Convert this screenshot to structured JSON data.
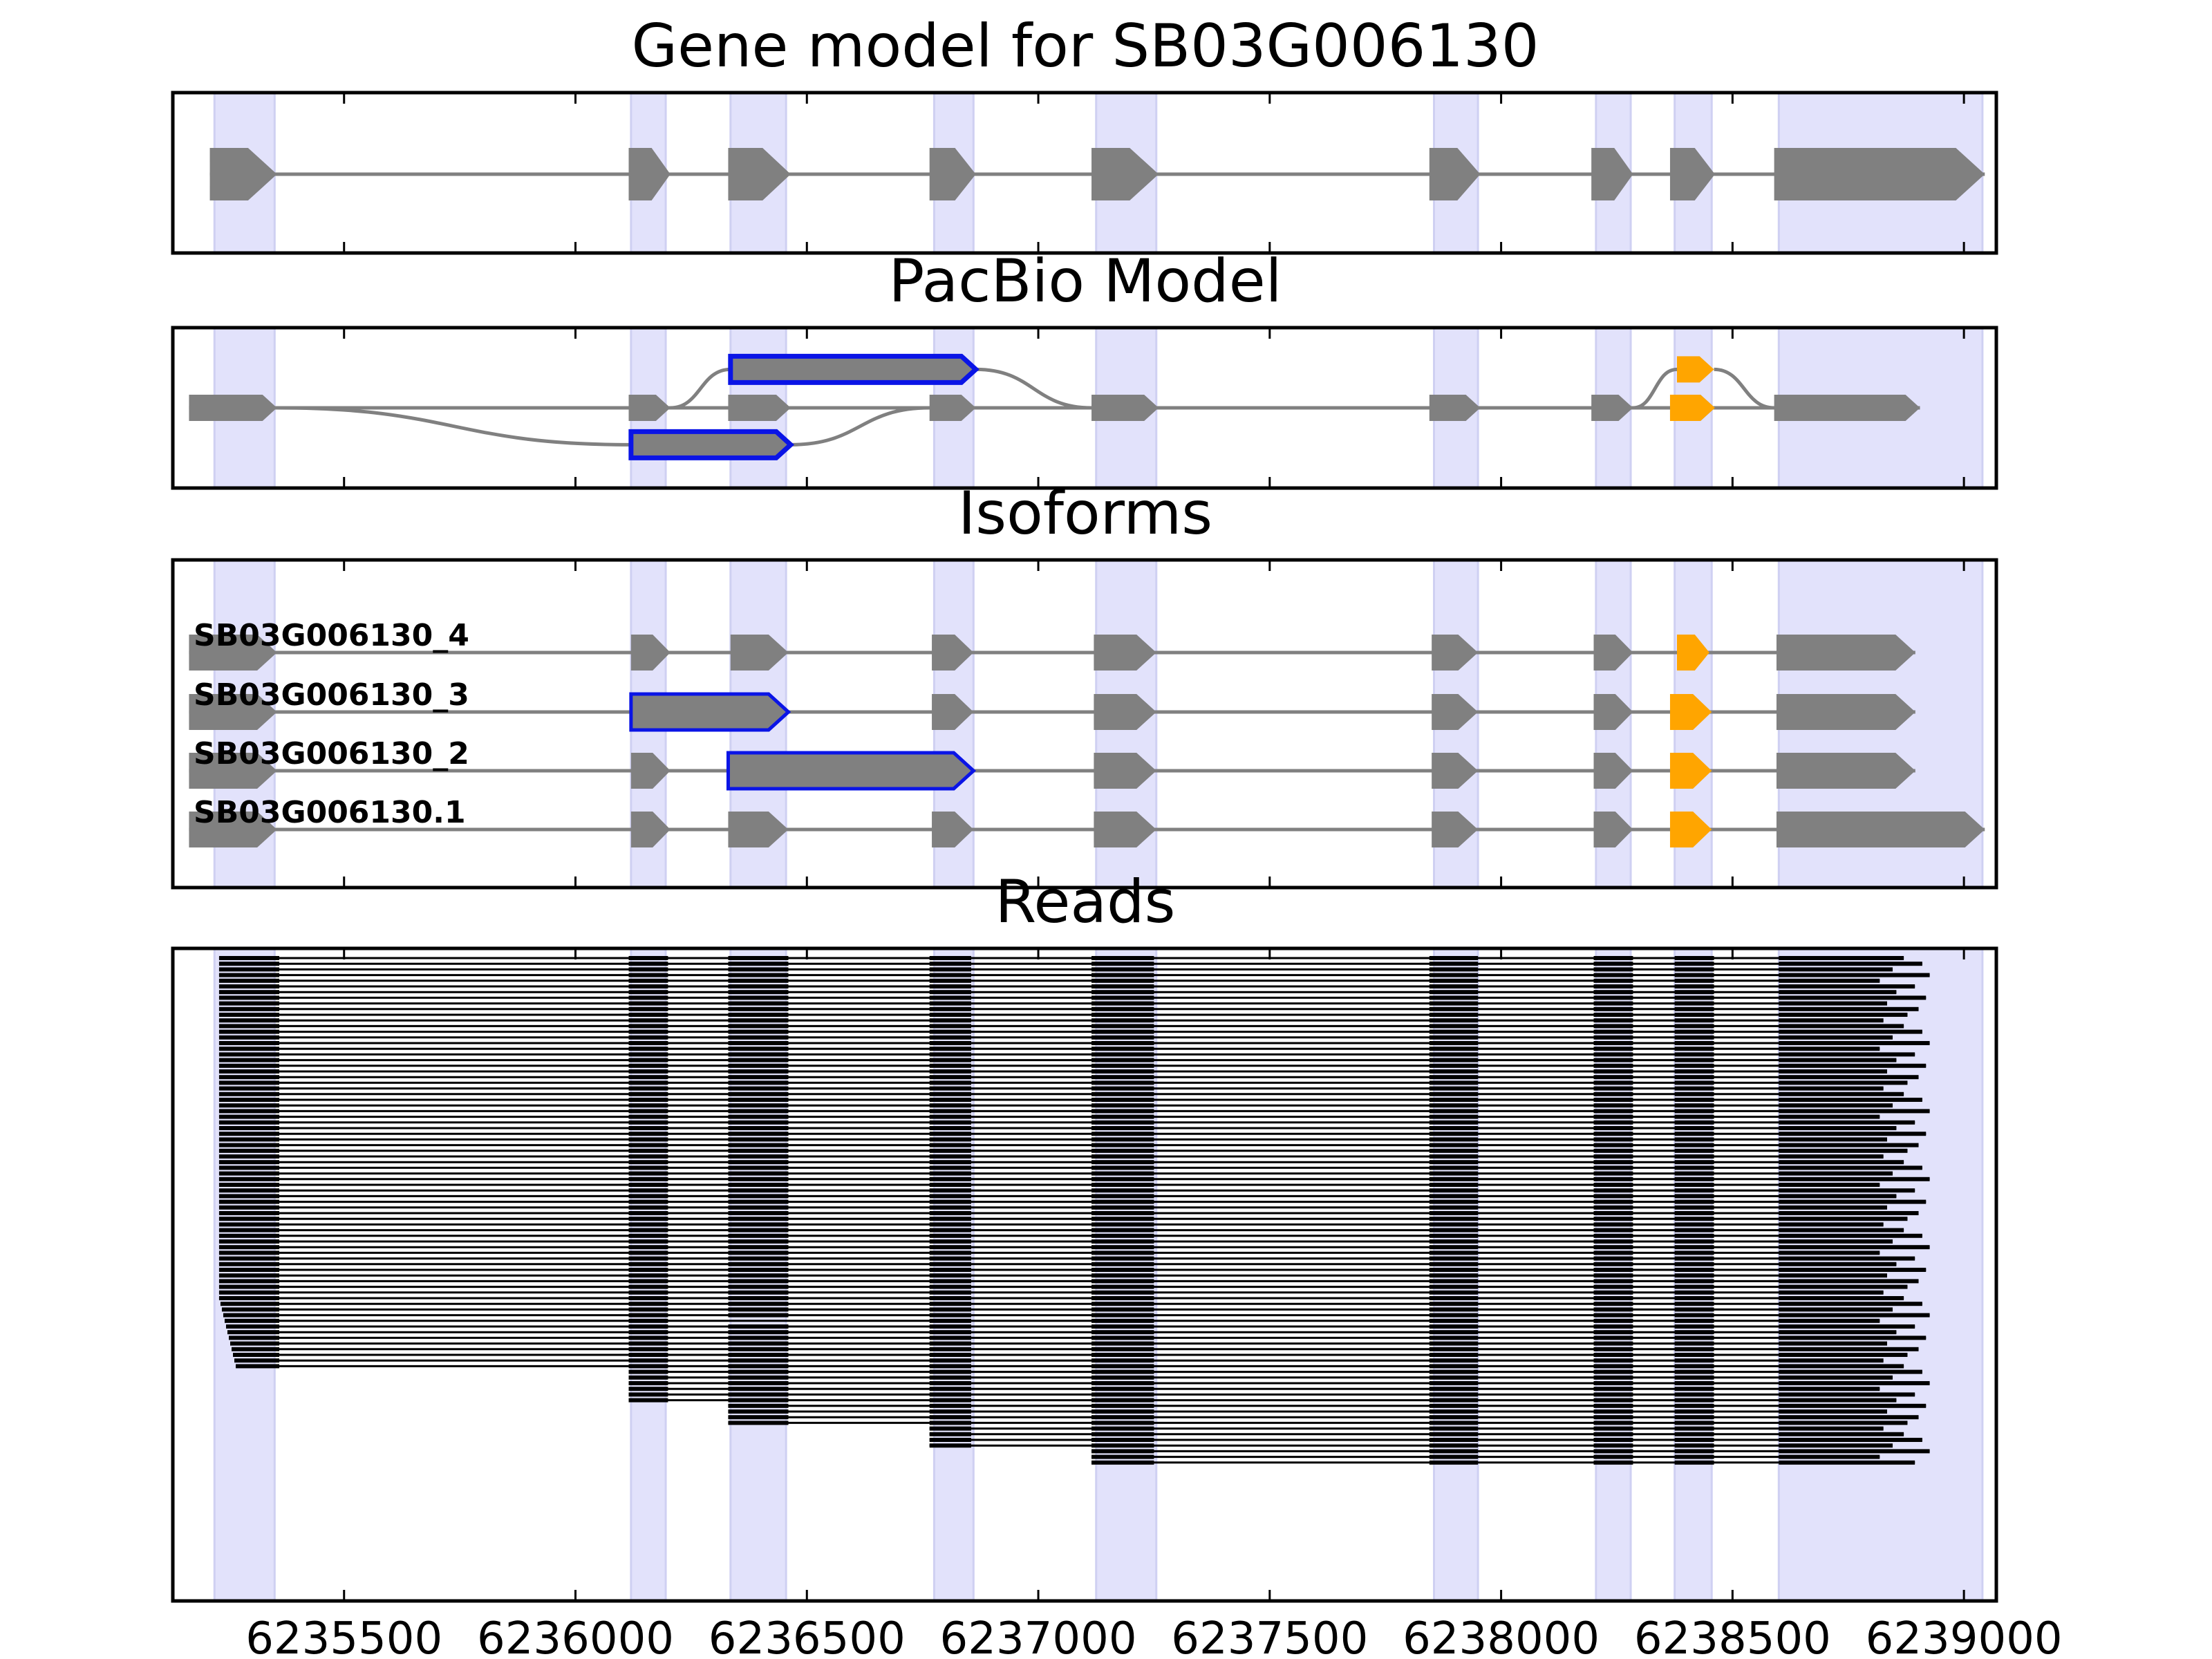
{
  "colors": {
    "exon_band": "#e2e2fb",
    "exon_band_edge": "#cfd0f2",
    "block": "#808080",
    "highlight_outline": "#0a14e6",
    "alt_exon": "#ffa500",
    "read": "#000000",
    "intron_line": "#808080",
    "axis": "#000000"
  },
  "chart_data": {
    "type": "gene-structure",
    "xlim": [
      6235130,
      6239070
    ],
    "x_ticks": [
      6235500,
      6236000,
      6236500,
      6237000,
      6237500,
      6238000,
      6238500,
      6239000
    ],
    "tick_labels": [
      "6235500",
      "6236000",
      "6236500",
      "6237000",
      "6237500",
      "6238000",
      "6238500",
      "6239000"
    ],
    "exon_bands": [
      [
        6235220,
        6235350
      ],
      [
        6236120,
        6236195
      ],
      [
        6236335,
        6236455
      ],
      [
        6236775,
        6236860
      ],
      [
        6237125,
        6237255
      ],
      [
        6237855,
        6237950
      ],
      [
        6238205,
        6238280
      ],
      [
        6238375,
        6238455
      ],
      [
        6238600,
        6239040
      ]
    ],
    "panels": [
      {
        "title": "Gene model for SB03G006130",
        "exons": [
          [
            6235210,
            6235355
          ],
          [
            6236115,
            6236205
          ],
          [
            6236330,
            6236465
          ],
          [
            6236765,
            6236865
          ],
          [
            6237115,
            6237260
          ],
          [
            6237845,
            6237955
          ],
          [
            6238195,
            6238285
          ],
          [
            6238365,
            6238462
          ],
          [
            6238590,
            6239045
          ]
        ]
      },
      {
        "title": "PacBio Model",
        "paths": [
          {
            "y": 0.5,
            "exons": [
              [
                6235165,
                6235355
              ],
              [
                6236115,
                6236205
              ],
              [
                6236330,
                6236465
              ],
              [
                6236765,
                6236865
              ],
              [
                6237115,
                6237260
              ],
              [
                6237845,
                6237955
              ],
              [
                6238195,
                6238285
              ],
              [
                6238365,
                6238462
              ],
              [
                6238590,
                6238905
              ]
            ]
          },
          {
            "y": 0.26,
            "exons": [
              [
                6236335,
                6236865
              ]
            ],
            "highlight": true
          },
          {
            "y": 0.73,
            "exons": [
              [
                6236120,
                6236465
              ]
            ],
            "highlight": true
          },
          {
            "y": 0.26,
            "exons": [
              [
                6238380,
                6238460
              ]
            ],
            "alt": true
          },
          {
            "y": 0.5,
            "exons": [
              [
                6238365,
                6238462
              ]
            ],
            "alt": true
          }
        ]
      },
      {
        "title": "Isoforms",
        "isoforms": [
          {
            "name": "SB03G006130_4",
            "exons": [
              [
                6235165,
                6235355
              ],
              [
                6236120,
                6236205
              ],
              [
                6236335,
                6236460
              ],
              [
                6236770,
                6236860
              ],
              [
                6237120,
                6237255
              ],
              [
                6237850,
                6237950
              ],
              [
                6238200,
                6238285
              ],
              [
                6238380,
                6238450
              ],
              [
                6238595,
                6238895
              ]
            ],
            "highlight": null,
            "alt_index": 7
          },
          {
            "name": "SB03G006130_3",
            "exons": [
              [
                6235165,
                6235355
              ],
              [
                6236120,
                6236460
              ],
              [
                6236770,
                6236860
              ],
              [
                6237120,
                6237255
              ],
              [
                6237850,
                6237950
              ],
              [
                6238200,
                6238285
              ],
              [
                6238365,
                6238455
              ],
              [
                6238595,
                6238895
              ]
            ],
            "highlight": 1,
            "alt_index": 6
          },
          {
            "name": "SB03G006130_2",
            "exons": [
              [
                6235165,
                6235355
              ],
              [
                6236120,
                6236205
              ],
              [
                6236330,
                6236860
              ],
              [
                6237120,
                6237255
              ],
              [
                6237850,
                6237950
              ],
              [
                6238200,
                6238285
              ],
              [
                6238365,
                6238455
              ],
              [
                6238595,
                6238895
              ]
            ],
            "highlight": 2,
            "alt_index": 6
          },
          {
            "name": "SB03G006130.1",
            "exons": [
              [
                6235165,
                6235355
              ],
              [
                6236120,
                6236205
              ],
              [
                6236330,
                6236460
              ],
              [
                6236770,
                6236860
              ],
              [
                6237120,
                6237255
              ],
              [
                6237850,
                6237950
              ],
              [
                6238200,
                6238285
              ],
              [
                6238365,
                6238455
              ],
              [
                6238595,
                6239045
              ]
            ],
            "highlight": null,
            "alt_index": 7
          }
        ]
      },
      {
        "title": "Reads",
        "reads": {
          "count": 90,
          "exons": [
            [
              6235230,
              6235360
            ],
            [
              6236115,
              6236200
            ],
            [
              6236330,
              6236460
            ],
            [
              6236765,
              6236855
            ],
            [
              6237115,
              6237250
            ],
            [
              6237845,
              6237950
            ],
            [
              6238200,
              6238285
            ],
            [
              6238375,
              6238460
            ],
            [
              6238600,
              6238870
            ]
          ],
          "skip_row": 64
        }
      }
    ]
  }
}
